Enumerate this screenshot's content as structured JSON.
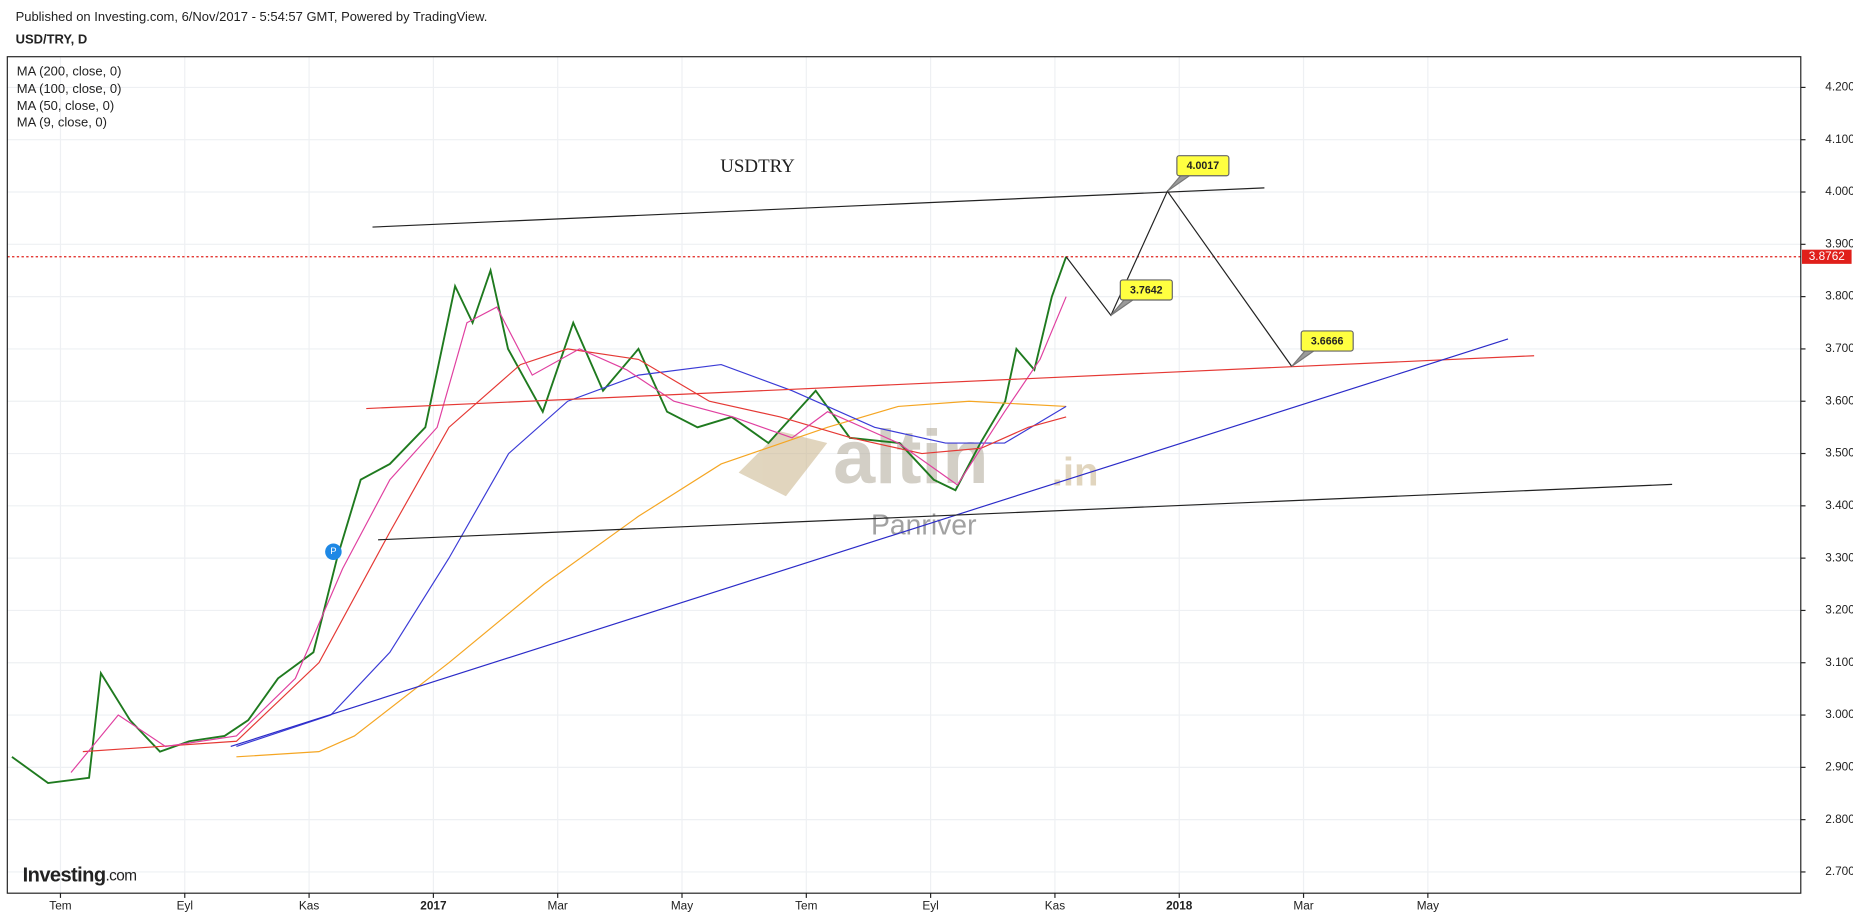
{
  "header": {
    "published": "Published on Investing.com, 6/Nov/2017 - 5:54:57 GMT, Powered by TradingView.",
    "symbol": "USD/TRY, D"
  },
  "indicators": [
    "MA (200, close, 0)",
    "MA (100, close, 0)",
    "MA (50, close, 0)",
    "MA (9, close, 0)"
  ],
  "watermark": {
    "brand": "altin",
    "suffix": ".in",
    "author": "Panriver"
  },
  "logo": {
    "brand": "Investing",
    "suffix": ".com"
  },
  "marker": "P",
  "chart_data": {
    "type": "line",
    "title": "USDTRY",
    "xlim": [
      -0.855,
      28.0
    ],
    "xticks": [
      {
        "value": 0,
        "label": "Tem"
      },
      {
        "value": 2,
        "label": "Eyl"
      },
      {
        "value": 4,
        "label": "Kas"
      },
      {
        "value": 6,
        "label": "2017"
      },
      {
        "value": 8,
        "label": "Mar"
      },
      {
        "value": 10,
        "label": "May"
      },
      {
        "value": 12,
        "label": "Tem"
      },
      {
        "value": 14,
        "label": "Eyl"
      },
      {
        "value": 16,
        "label": "Kas"
      },
      {
        "value": 18,
        "label": "2018"
      },
      {
        "value": 20,
        "label": "Mar"
      },
      {
        "value": 22,
        "label": "May"
      }
    ],
    "ylim": [
      2.6594,
      4.2587
    ],
    "yticks": [
      {
        "value": 2.7,
        "label": "2.7000"
      },
      {
        "value": 2.8,
        "label": "2.8000"
      },
      {
        "value": 2.9,
        "label": "2.9000"
      },
      {
        "value": 3.0,
        "label": "3.0000"
      },
      {
        "value": 3.1,
        "label": "3.1000"
      },
      {
        "value": 3.2,
        "label": "3.2000"
      },
      {
        "value": 3.3,
        "label": "3.3000"
      },
      {
        "value": 3.4,
        "label": "3.4000"
      },
      {
        "value": 3.5,
        "label": "3.5000"
      },
      {
        "value": 3.6,
        "label": "3.6000"
      },
      {
        "value": 3.7,
        "label": "3.7000"
      },
      {
        "value": 3.8,
        "label": "3.8000"
      },
      {
        "value": 3.9,
        "label": "3.9000"
      },
      {
        "value": 4.0,
        "label": "4.0000"
      },
      {
        "value": 4.1,
        "label": "4.1000"
      },
      {
        "value": 4.2,
        "label": "4.2000"
      }
    ],
    "grid": true,
    "last_price": {
      "value": 3.8762,
      "label": "3.8762",
      "color": "#e0201b"
    },
    "series": [
      {
        "color": "#1f7a1f",
        "x": [
          -0.78,
          -0.2,
          0.46,
          0.65,
          1.12,
          1.6,
          2.07,
          2.64,
          3.02,
          3.5,
          4.07,
          4.45,
          4.83,
          5.3,
          5.87,
          6.35,
          6.63,
          6.92,
          7.2,
          7.76,
          8.25,
          8.73,
          9.3,
          9.76,
          10.25,
          10.8,
          11.39,
          12.15,
          12.7,
          13.5,
          14.05,
          14.4,
          14.8,
          15.2,
          15.38,
          15.67,
          15.95,
          16.18
        ],
        "values": [
          2.92,
          2.87,
          2.88,
          3.08,
          2.99,
          2.93,
          2.95,
          2.96,
          2.99,
          3.07,
          3.12,
          3.3,
          3.45,
          3.48,
          3.55,
          3.82,
          3.75,
          3.85,
          3.7,
          3.58,
          3.75,
          3.62,
          3.7,
          3.58,
          3.55,
          3.57,
          3.52,
          3.62,
          3.53,
          3.52,
          3.45,
          3.43,
          3.52,
          3.6,
          3.7,
          3.66,
          3.8,
          3.8762
        ]
      },
      {
        "color": "#f5a623",
        "x": [
          2.83,
          4.16,
          4.73,
          6.25,
          7.78,
          9.3,
          10.63,
          12.34,
          13.48,
          14.62,
          16.18
        ],
        "values": [
          2.92,
          2.93,
          2.96,
          3.1,
          3.25,
          3.38,
          3.48,
          3.55,
          3.59,
          3.6,
          3.59
        ]
      },
      {
        "color": "#3b3bd6",
        "x": [
          2.83,
          4.35,
          5.3,
          6.25,
          7.21,
          8.16,
          9.3,
          10.63,
          11.77,
          13.1,
          14.24,
          15.19,
          16.18
        ],
        "values": [
          2.94,
          3.0,
          3.12,
          3.3,
          3.5,
          3.6,
          3.65,
          3.67,
          3.62,
          3.55,
          3.52,
          3.52,
          3.59
        ]
      },
      {
        "color": "#e53935",
        "x": [
          0.36,
          2.83,
          4.16,
          5.3,
          6.25,
          7.4,
          8.16,
          9.3,
          10.44,
          11.58,
          12.72,
          13.86,
          14.81,
          15.57,
          16.18
        ],
        "values": [
          2.93,
          2.95,
          3.1,
          3.35,
          3.55,
          3.67,
          3.7,
          3.68,
          3.6,
          3.57,
          3.53,
          3.5,
          3.51,
          3.55,
          3.57
        ]
      },
      {
        "color": "#e040a0",
        "x": [
          0.17,
          0.93,
          1.69,
          2.83,
          3.78,
          4.54,
          5.3,
          6.06,
          6.54,
          7.02,
          7.59,
          8.35,
          9.11,
          9.87,
          10.82,
          11.77,
          12.34,
          13.48,
          14.43,
          15.19,
          15.76,
          16.18
        ],
        "values": [
          2.89,
          3.0,
          2.94,
          2.96,
          3.07,
          3.28,
          3.45,
          3.55,
          3.75,
          3.78,
          3.65,
          3.7,
          3.66,
          3.6,
          3.57,
          3.53,
          3.58,
          3.52,
          3.44,
          3.58,
          3.68,
          3.8
        ]
      }
    ],
    "trend_lines": [
      {
        "color": "#222222",
        "x": [
          5.02,
          19.37
        ],
        "values": [
          3.933,
          4.008
        ]
      },
      {
        "color": "#e53935",
        "x": [
          4.92,
          23.71
        ],
        "values": [
          3.586,
          3.687
        ]
      },
      {
        "color": "#2b2bc8",
        "x": [
          2.74,
          23.29
        ],
        "values": [
          2.94,
          3.719
        ]
      },
      {
        "color": "#222222",
        "x": [
          5.11,
          25.93
        ],
        "values": [
          3.335,
          3.441
        ]
      }
    ],
    "projection": {
      "color": "#222222",
      "x": [
        16.18,
        16.9,
        17.81,
        19.81
      ],
      "values": [
        3.8762,
        3.7642,
        4.0017,
        3.6666
      ],
      "value_labels": [
        null,
        "3.7642",
        "4.0017",
        "3.6666"
      ]
    }
  }
}
